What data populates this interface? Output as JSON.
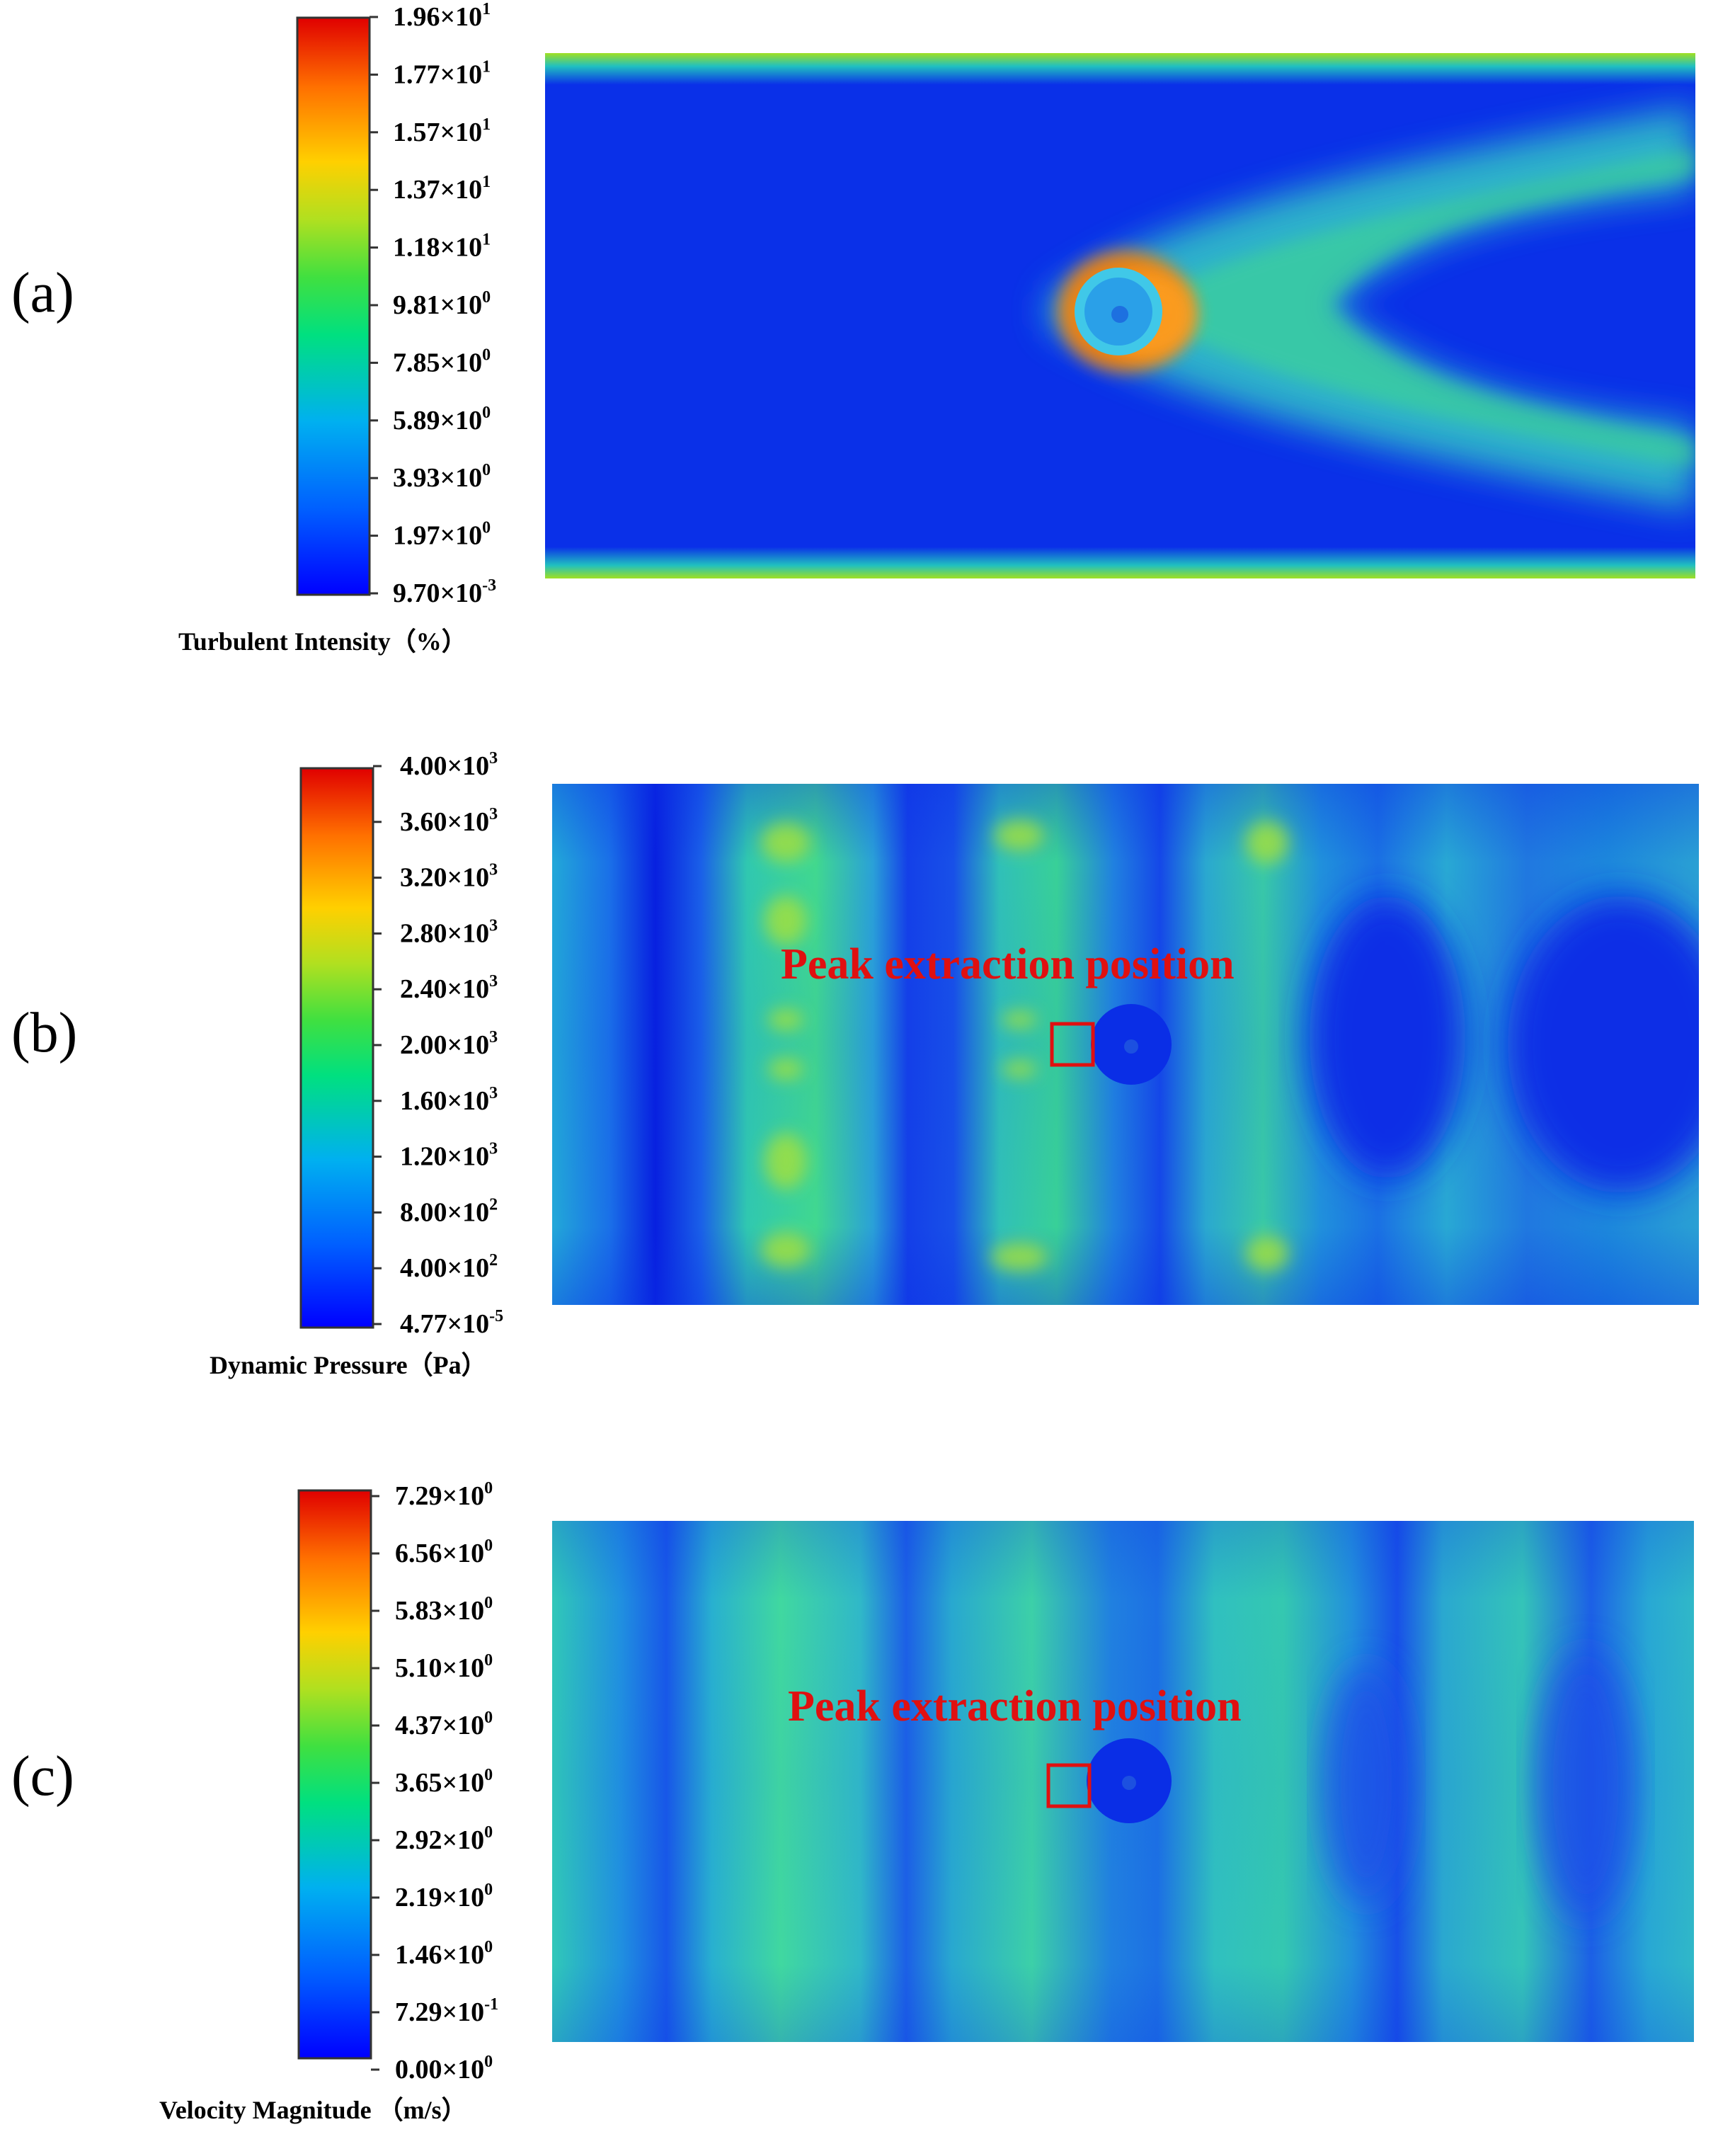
{
  "panels": [
    {
      "id": "a",
      "label": "(a)",
      "colorbar": {
        "title": "Turbulent Intensity（%）",
        "ticks": [
          {
            "mant": "1.96",
            "exp": "1"
          },
          {
            "mant": "1.77",
            "exp": "1"
          },
          {
            "mant": "1.57",
            "exp": "1"
          },
          {
            "mant": "1.37",
            "exp": "1"
          },
          {
            "mant": "1.18",
            "exp": "1"
          },
          {
            "mant": "9.81",
            "exp": "0"
          },
          {
            "mant": "7.85",
            "exp": "0"
          },
          {
            "mant": "5.89",
            "exp": "0"
          },
          {
            "mant": "3.93",
            "exp": "0"
          },
          {
            "mant": "1.97",
            "exp": "0"
          },
          {
            "mant": "9.70",
            "exp": "-3"
          }
        ]
      },
      "annotation": ""
    },
    {
      "id": "b",
      "label": "(b)",
      "colorbar": {
        "title": "Dynamic Pressure（Pa）",
        "ticks": [
          {
            "mant": "4.00",
            "exp": "3"
          },
          {
            "mant": "3.60",
            "exp": "3"
          },
          {
            "mant": "3.20",
            "exp": "3"
          },
          {
            "mant": "2.80",
            "exp": "3"
          },
          {
            "mant": "2.40",
            "exp": "3"
          },
          {
            "mant": "2.00",
            "exp": "3"
          },
          {
            "mant": "1.60",
            "exp": "3"
          },
          {
            "mant": "1.20",
            "exp": "3"
          },
          {
            "mant": "8.00",
            "exp": "2"
          },
          {
            "mant": "4.00",
            "exp": "2"
          },
          {
            "mant": "4.77",
            "exp": "-5"
          }
        ]
      },
      "annotation": "Peak extraction position"
    },
    {
      "id": "c",
      "label": "(c)",
      "colorbar": {
        "title": "Velocity Magnitude （m/s）",
        "ticks": [
          {
            "mant": "7.29",
            "exp": "0"
          },
          {
            "mant": "6.56",
            "exp": "0"
          },
          {
            "mant": "5.83",
            "exp": "0"
          },
          {
            "mant": "5.10",
            "exp": "0"
          },
          {
            "mant": "4.37",
            "exp": "0"
          },
          {
            "mant": "3.65",
            "exp": "0"
          },
          {
            "mant": "2.92",
            "exp": "0"
          },
          {
            "mant": "2.19",
            "exp": "0"
          },
          {
            "mant": "1.46",
            "exp": "0"
          },
          {
            "mant": "7.29",
            "exp": "-1"
          },
          {
            "mant": "0.00",
            "exp": "0"
          }
        ]
      },
      "annotation": "Peak extraction position"
    }
  ],
  "colors": {
    "jet": [
      "#0000ff",
      "#0080ff",
      "#00e0a0",
      "#40e040",
      "#c0e020",
      "#ffc000",
      "#ff6000",
      "#e00000"
    ],
    "field_blue": "#0a2ee6",
    "annotation": "#e01010"
  }
}
